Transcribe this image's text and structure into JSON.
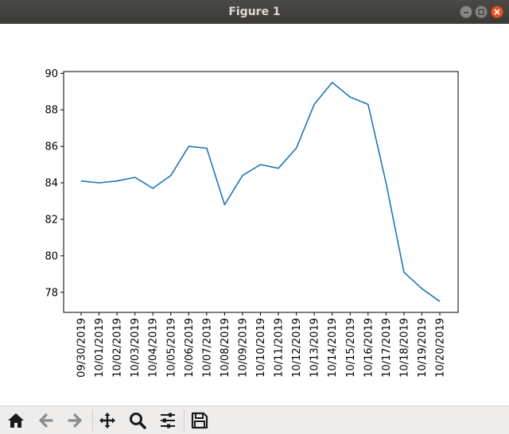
{
  "window": {
    "title": "Figure 1"
  },
  "chart_data": {
    "type": "line",
    "categories": [
      "09/30/2019",
      "10/01/2019",
      "10/02/2019",
      "10/03/2019",
      "10/04/2019",
      "10/05/2019",
      "10/06/2019",
      "10/07/2019",
      "10/08/2019",
      "10/09/2019",
      "10/10/2019",
      "10/11/2019",
      "10/12/2019",
      "10/13/2019",
      "10/14/2019",
      "10/15/2019",
      "10/16/2019",
      "10/17/2019",
      "10/18/2019",
      "10/19/2019",
      "10/20/2019"
    ],
    "values": [
      84.1,
      84.0,
      84.1,
      84.3,
      83.7,
      84.4,
      86.0,
      85.9,
      82.8,
      84.4,
      85.0,
      84.8,
      85.9,
      88.3,
      89.5,
      88.7,
      88.3,
      84.0,
      79.1,
      78.2,
      77.5
    ],
    "yticks": [
      78,
      80,
      82,
      84,
      86,
      88,
      90
    ],
    "ylim": [
      76.9,
      90.1
    ],
    "title": "",
    "xlabel": "",
    "ylabel": "",
    "grid": false,
    "color": "#1f77b4"
  },
  "toolbar": {
    "icons": [
      "home-icon",
      "back-arrow-icon",
      "forward-arrow-icon",
      "move-icon",
      "zoom-icon",
      "configure-subplots-icon",
      "save-icon"
    ]
  }
}
